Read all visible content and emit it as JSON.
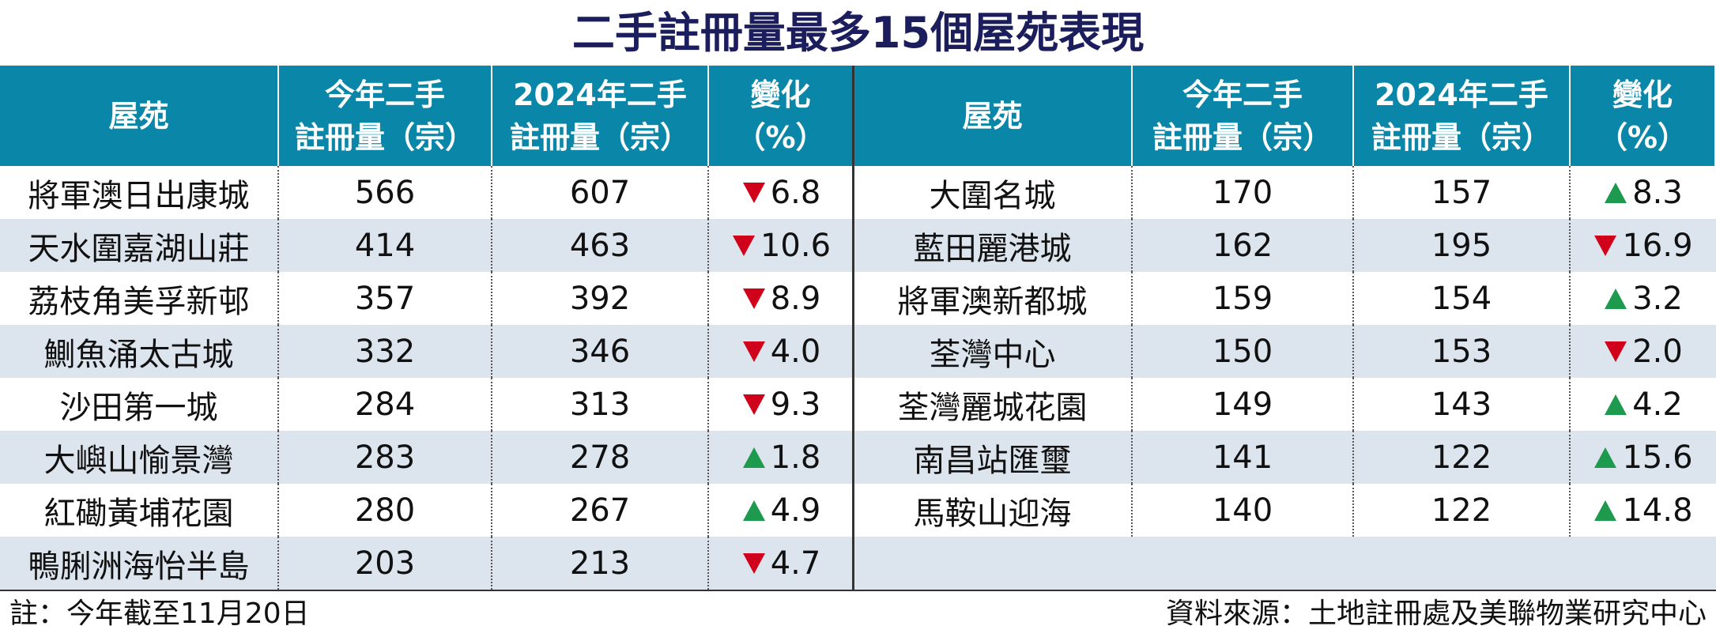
{
  "title": "二手註冊量最多15個屋苑表現",
  "headers": [
    "屋苑",
    "今年二手\n註冊量（宗）",
    "2024年二手\n註冊量（宗）",
    "變化\n（%）"
  ],
  "tables": [
    {
      "rows": [
        {
          "estate": "將軍澳日出康城",
          "this_year": 566,
          "year_2024": 607,
          "change": "6.8",
          "trend": "down"
        },
        {
          "estate": "天水圍嘉湖山莊",
          "this_year": 414,
          "year_2024": 463,
          "change": "10.6",
          "trend": "down"
        },
        {
          "estate": "荔枝角美孚新邨",
          "this_year": 357,
          "year_2024": 392,
          "change": "8.9",
          "trend": "down"
        },
        {
          "estate": "鰂魚涌太古城",
          "this_year": 332,
          "year_2024": 346,
          "change": "4.0",
          "trend": "down"
        },
        {
          "estate": "沙田第一城",
          "this_year": 284,
          "year_2024": 313,
          "change": "9.3",
          "trend": "down"
        },
        {
          "estate": "大嶼山愉景灣",
          "this_year": 283,
          "year_2024": 278,
          "change": "1.8",
          "trend": "up"
        },
        {
          "estate": "紅磡黃埔花園",
          "this_year": 280,
          "year_2024": 267,
          "change": "4.9",
          "trend": "up"
        },
        {
          "estate": "鴨脷洲海怡半島",
          "this_year": 203,
          "year_2024": 213,
          "change": "4.7",
          "trend": "down"
        }
      ]
    },
    {
      "rows": [
        {
          "estate": "大圍名城",
          "this_year": 170,
          "year_2024": 157,
          "change": "8.3",
          "trend": "up"
        },
        {
          "estate": "藍田麗港城",
          "this_year": 162,
          "year_2024": 195,
          "change": "16.9",
          "trend": "down"
        },
        {
          "estate": "將軍澳新都城",
          "this_year": 159,
          "year_2024": 154,
          "change": "3.2",
          "trend": "up"
        },
        {
          "estate": "荃灣中心",
          "this_year": 150,
          "year_2024": 153,
          "change": "2.0",
          "trend": "down"
        },
        {
          "estate": "荃灣麗城花園",
          "this_year": 149,
          "year_2024": 143,
          "change": "4.2",
          "trend": "up"
        },
        {
          "estate": "南昌站匯璽",
          "this_year": 141,
          "year_2024": 122,
          "change": "15.6",
          "trend": "up"
        },
        {
          "estate": "馬鞍山迎海",
          "this_year": 140,
          "year_2024": 122,
          "change": "14.8",
          "trend": "up"
        }
      ]
    }
  ],
  "trend_colors": {
    "up": "#1e9a4e",
    "down": "#d0021b"
  },
  "note": "註：今年截至11月20日",
  "source": "資料來源：土地註冊處及美聯物業研究中心"
}
